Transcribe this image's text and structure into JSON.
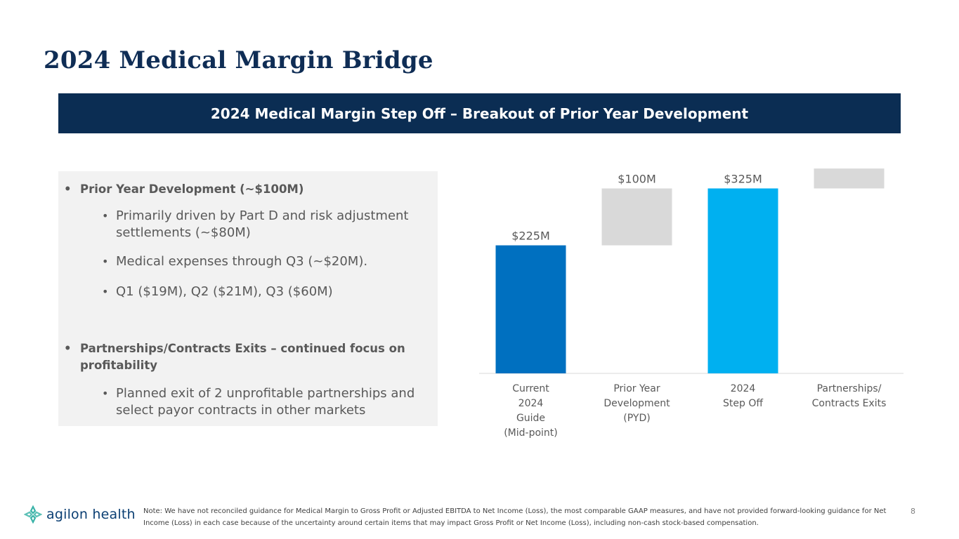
{
  "title": "2024 Medical Margin Bridge",
  "banner": "2024 Medical Margin Step Off – Breakout of Prior Year Development",
  "bullets": [
    {
      "text": "Prior Year Development (~$100M)"
    },
    {
      "text": "Primarily driven by Part D and risk adjustment settlements (~$80M)"
    },
    {
      "text": "Medical expenses through Q3 (~$20M)."
    },
    {
      "text": "Q1 ($19M), Q2 ($21M), Q3 ($60M)"
    },
    {
      "text": "Partnerships/Contracts Exits – continued focus on profitability"
    },
    {
      "text": "Planned exit of 2 unprofitable partnerships and select payor contracts in other markets"
    }
  ],
  "bullet_char": "•",
  "chart_data": {
    "type": "bar",
    "subtype": "waterfall",
    "title": "",
    "categories": [
      [
        "Current",
        "2024",
        "Guide",
        "(Mid-point)"
      ],
      [
        "Prior Year",
        "Development",
        "(PYD)"
      ],
      [
        "2024",
        "Step Off"
      ],
      [
        "Partnerships/",
        "Contracts Exits"
      ]
    ],
    "bars": [
      {
        "start": 0,
        "end": 225,
        "label": "$225M",
        "color": "#0070c0"
      },
      {
        "start": 225,
        "end": 325,
        "label": "$100M",
        "color": "#d9d9d9"
      },
      {
        "start": 0,
        "end": 325,
        "label": "$325M",
        "color": "#00b0f0"
      },
      {
        "start": 325,
        "end": 360,
        "label": "",
        "color": "#d9d9d9"
      }
    ],
    "ylim": [
      0,
      370
    ],
    "xlabel": "",
    "ylabel": ""
  },
  "footer": {
    "logo_text": "agilon health",
    "note": "Note: We have not reconciled guidance for Medical Margin to Gross Profit or Adjusted EBITDA to Net Income (Loss), the most comparable GAAP measures, and have not provided forward-looking guidance for Net Income (Loss) in each case because of the uncertainty around certain items that may impact Gross Profit or Net Income (Loss), including non-cash stock-based compensation.",
    "page_number": "8"
  },
  "colors": {
    "title": "#0f2d55",
    "banner_bg": "#0b2d53",
    "panel_bg": "#f2f2f2"
  }
}
